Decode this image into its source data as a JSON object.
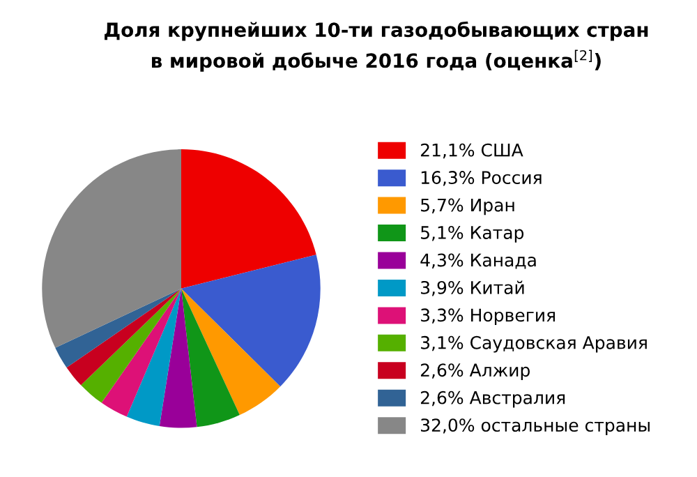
{
  "chart_data": {
    "type": "pie",
    "title": "Доля крупнейших 10-ти газодобывающих стран\nв мировой добыче 2016 года (оценка$^{[2]}$)",
    "categories": [
      "США",
      "Россия",
      "Иран",
      "Катар",
      "Канада",
      "Китай",
      "Норвегия",
      "Саудовская Аравия",
      "Алжир",
      "Австралия",
      "остальные страны"
    ],
    "values": [
      21.1,
      16.3,
      5.7,
      5.1,
      4.3,
      3.9,
      3.3,
      3.1,
      2.6,
      2.6,
      32.0
    ],
    "value_labels": [
      "21,1%",
      "16,3%",
      "5,7%",
      "5,1%",
      "4,3%",
      "3,9%",
      "3,3%",
      "3,1%",
      "2,6%",
      "2,6%",
      "32,0%"
    ],
    "colors": [
      "#ee0000",
      "#3a5bcf",
      "#ff9900",
      "#109618",
      "#990099",
      "#0099c6",
      "#dd1177",
      "#55b000",
      "#c8001f",
      "#316395",
      "#878787"
    ],
    "legend": "right"
  }
}
